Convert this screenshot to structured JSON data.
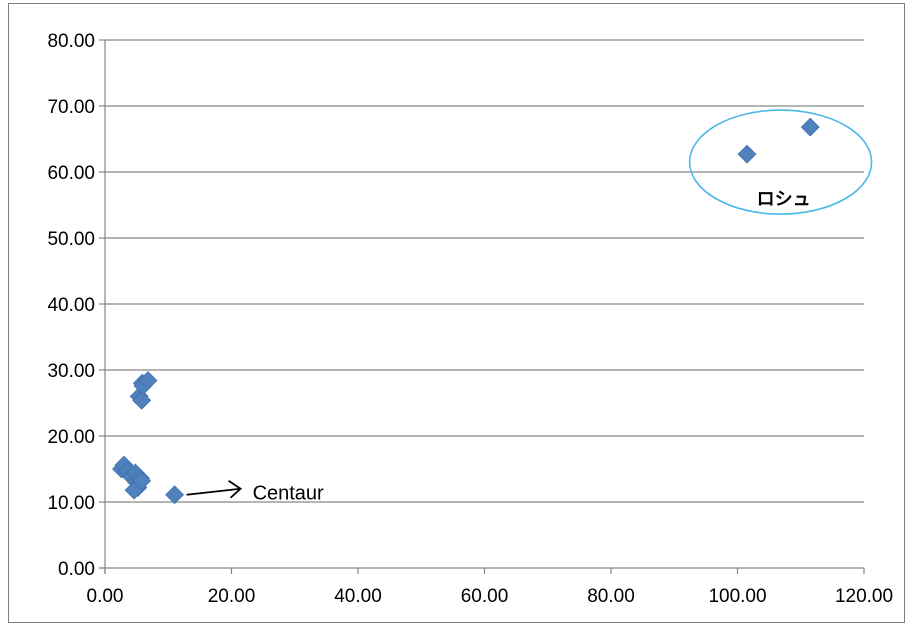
{
  "chart_data": {
    "type": "scatter",
    "title": "",
    "xlabel": "",
    "ylabel": "",
    "xlim": [
      0,
      120
    ],
    "ylim": [
      0,
      80
    ],
    "grid": "horizontal",
    "x_tick_labels": [
      "0.00",
      "20.00",
      "40.00",
      "60.00",
      "80.00",
      "100.00",
      "120.00"
    ],
    "y_tick_labels": [
      "0.00",
      "10.00",
      "20.00",
      "30.00",
      "40.00",
      "50.00",
      "60.00",
      "70.00",
      "80.00"
    ],
    "marker": "diamond",
    "series": [
      {
        "color": "#4F81BD",
        "x": [
          2.6,
          3.0,
          3.6,
          4.2,
          4.8,
          5.0,
          5.2,
          5.6,
          4.6,
          5.8,
          5.4,
          5.8,
          5.9,
          6.0,
          6.8,
          11.0,
          101.5,
          111.5
        ],
        "y": [
          15.0,
          15.6,
          14.6,
          13.8,
          14.4,
          13.0,
          12.2,
          13.6,
          11.8,
          13.2,
          26.0,
          25.4,
          28.0,
          27.6,
          28.4,
          11.1,
          62.7,
          66.8
        ]
      }
    ],
    "annotations": [
      {
        "text": "Centaur",
        "arrow": true
      },
      {
        "text": "ロシュ",
        "ellipse": true
      }
    ]
  },
  "colors": {
    "marker": "#4F81BD",
    "grid": "#868686",
    "ellipse": "#4BB8E8"
  }
}
